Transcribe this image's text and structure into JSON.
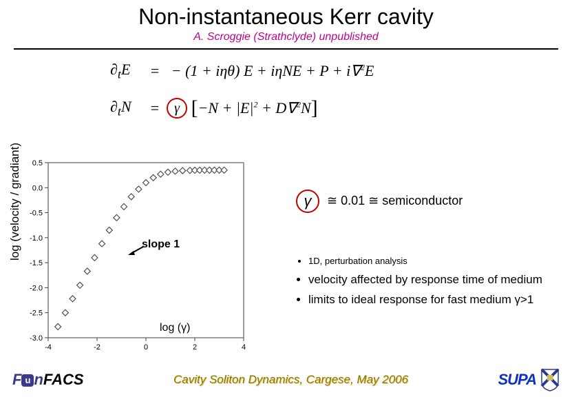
{
  "title": "Non-instantaneous Kerr cavity",
  "subtitle": "A. Scroggie (Strathclyde) unpublished",
  "equations": {
    "eq1_lhs": "∂",
    "eq1_sub": "t",
    "eq1_var": "E",
    "eq1_rhs_a": "=   − (1 + iηθ) E + iηNE + P + i∇",
    "eq1_rhs_sup": "2",
    "eq1_rhs_b": "E",
    "eq2_lhs": "∂",
    "eq2_sub": "t",
    "eq2_var": "N",
    "eq2_gamma": "γ",
    "eq2_rhs_a": "−N + |E|",
    "eq2_rhs_sup": "2",
    "eq2_rhs_b": " + D∇",
    "eq2_rhs_sup2": "2",
    "eq2_rhs_c": "N"
  },
  "gamma_note": {
    "symbol": "γ",
    "approx": "≅ 0.01 ≅ semiconductor"
  },
  "chart": {
    "type": "scatter",
    "xlim": [
      -4,
      4
    ],
    "ylim": [
      -3.0,
      0.5
    ],
    "xticks": [
      -4,
      -2,
      0,
      2,
      4
    ],
    "yticks": [
      0.5,
      0.0,
      -0.5,
      -1.0,
      -1.5,
      -2.0,
      -2.5,
      -3.0
    ],
    "ylabel": "log (velocity / gradiant)",
    "xlabel_text": "log (γ)",
    "slope_label": "slope 1",
    "marker_color": "#7a7a7a",
    "marker_size": 4.5,
    "marker_stroke": "#505050",
    "axis_color": "#404040",
    "tick_fontsize": 11,
    "background": "#ffffff",
    "points_x": [
      -3.6,
      -3.3,
      -3.0,
      -2.7,
      -2.4,
      -2.1,
      -1.8,
      -1.5,
      -1.2,
      -0.9,
      -0.6,
      -0.3,
      0.0,
      0.3,
      0.6,
      0.9,
      1.2,
      1.5,
      1.8,
      2.0,
      2.2,
      2.4,
      2.6,
      2.8,
      3.0,
      3.2
    ],
    "points_y": [
      -2.78,
      -2.5,
      -2.22,
      -1.95,
      -1.67,
      -1.4,
      -1.12,
      -0.85,
      -0.6,
      -0.38,
      -0.18,
      -0.03,
      0.1,
      0.2,
      0.27,
      0.31,
      0.33,
      0.34,
      0.345,
      0.348,
      0.349,
      0.35,
      0.35,
      0.35,
      0.35,
      0.35
    ]
  },
  "bullets": {
    "b1": "1D, perturbation analysis",
    "b2": "velocity affected by response time of medium",
    "b3": "limits to ideal response for fast medium γ>1"
  },
  "footer": {
    "left_fun": "F",
    "left_u": "u",
    "left_n": "n",
    "left_facs": "FACS",
    "center": "Cavity Soliton Dynamics, Cargese, May 2006",
    "supa": "SUPA"
  },
  "colors": {
    "subtitle": "#c00090",
    "circle": "#c00000",
    "footer_text": "#8b7500",
    "supa": "#1030c0"
  }
}
